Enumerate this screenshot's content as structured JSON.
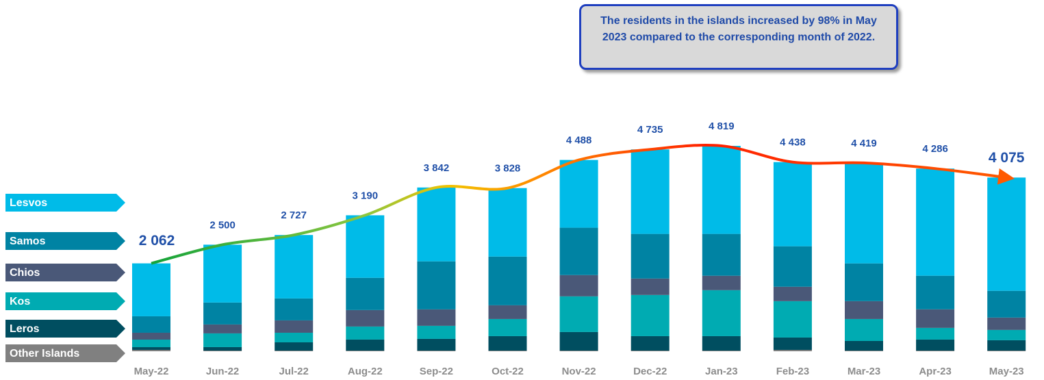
{
  "chart_data": {
    "type": "bar",
    "annotation": "The residents in the islands increased by 98% in May 2023 compared to the corresponding month of 2022.",
    "categories": [
      "May-22",
      "Jun-22",
      "Jul-22",
      "Aug-22",
      "Sep-22",
      "Oct-22",
      "Nov-22",
      "Dec-22",
      "Jan-23",
      "Feb-23",
      "Mar-23",
      "Apr-23",
      "May-23"
    ],
    "series": [
      {
        "name": "Other Islands",
        "color": "#808080",
        "values": [
          32,
          16,
          16,
          16,
          16,
          16,
          16,
          16,
          16,
          32,
          16,
          16,
          16
        ]
      },
      {
        "name": "Leros",
        "color": "#004e60",
        "values": [
          64,
          81,
          193,
          258,
          274,
          338,
          435,
          338,
          338,
          290,
          225,
          258,
          242
        ]
      },
      {
        "name": "Kos",
        "color": "#00abb2",
        "values": [
          177,
          322,
          225,
          306,
          306,
          402,
          837,
          966,
          1079,
          853,
          515,
          274,
          242
        ]
      },
      {
        "name": "Chios",
        "color": "#4a5878",
        "values": [
          161,
          209,
          290,
          386,
          386,
          322,
          499,
          386,
          338,
          338,
          419,
          435,
          290
        ]
      },
      {
        "name": "Samos",
        "color": "#0083a3",
        "values": [
          386,
          515,
          515,
          757,
          1127,
          1143,
          1111,
          1047,
          982,
          950,
          886,
          789,
          628
        ]
      },
      {
        "name": "Lesvos",
        "color": "#00bbe8",
        "values": [
          1242,
          1357,
          1488,
          1467,
          1733,
          1607,
          1590,
          1982,
          2066,
          1975,
          2358,
          2514,
          2657
        ]
      }
    ],
    "totals": [
      2062,
      2500,
      2727,
      3190,
      3842,
      3828,
      4488,
      4735,
      4819,
      4438,
      4419,
      4286,
      4075
    ],
    "value_labels": [
      "2 062",
      "2 500",
      "2 727",
      "3 190",
      "3 842",
      "3 828",
      "4 488",
      "4 735",
      "4 819",
      "4 438",
      "4 419",
      "4 286",
      "4 075"
    ]
  }
}
